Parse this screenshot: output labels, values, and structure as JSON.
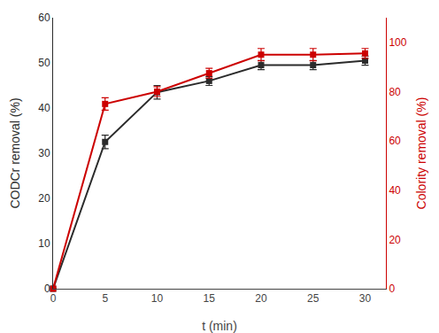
{
  "chart_data": {
    "type": "line",
    "xlabel": "t (min)",
    "ylabel": "CODCr removal (%)",
    "y2label": "Colority removal (%)",
    "x": [
      0,
      5,
      10,
      15,
      20,
      25,
      30
    ],
    "series": [
      {
        "color": "#2b2b2b",
        "marker": "square",
        "line_style": "solid",
        "values": [
          0,
          32.5,
          43.5,
          46.0,
          49.5,
          49.5,
          50.5
        ],
        "yerr": [
          0,
          1.5,
          1.5,
          1.0,
          1.0,
          1.0,
          1.0
        ]
      },
      {
        "color": "#cc0000",
        "marker": "square",
        "line_style": "solid",
        "axis": "y2",
        "values": [
          0,
          75.0,
          80.0,
          87.5,
          95.0,
          95.0,
          95.5
        ],
        "yerr": [
          0,
          2.5,
          2.0,
          2.0,
          2.5,
          2.5,
          2.0
        ]
      }
    ],
    "xlim": [
      0,
      32
    ],
    "xticks": [
      0,
      5,
      10,
      15,
      20,
      25,
      30
    ],
    "ylim": [
      0,
      60
    ],
    "yticks": [
      0,
      10,
      20,
      30,
      40,
      50,
      60
    ],
    "y2lim": [
      0,
      110
    ],
    "y2ticks": [
      0,
      20,
      40,
      60,
      80,
      100
    ],
    "grid": false
  }
}
